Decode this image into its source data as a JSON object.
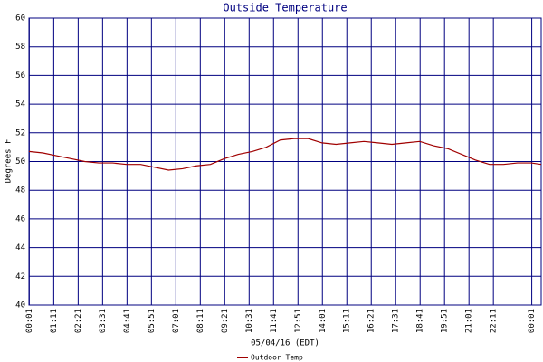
{
  "chart_data": {
    "type": "line",
    "title": "Outside Temperature",
    "ylabel": "Degrees F",
    "xlabel": "05/04/16 (EDT)",
    "x": [
      0,
      40,
      80,
      120,
      160,
      200,
      240,
      280,
      320,
      360,
      400,
      440,
      480,
      520,
      560,
      600,
      640,
      680,
      720,
      760,
      800,
      840,
      880,
      920,
      960,
      1000,
      1040,
      1080,
      1120,
      1160,
      1200,
      1240,
      1280,
      1320,
      1360,
      1400,
      1440,
      1468
    ],
    "series": [
      {
        "name": "Outdoor Temp",
        "color": "#a00000",
        "values": [
          50.7,
          50.6,
          50.4,
          50.2,
          50.0,
          49.9,
          49.9,
          49.8,
          49.8,
          49.6,
          49.4,
          49.5,
          49.7,
          49.8,
          50.2,
          50.5,
          50.7,
          51.0,
          51.5,
          51.6,
          51.6,
          51.3,
          51.2,
          51.3,
          51.4,
          51.3,
          51.2,
          51.3,
          51.4,
          51.1,
          50.9,
          50.5,
          50.1,
          49.8,
          49.8,
          49.9,
          49.9,
          49.8
        ]
      }
    ],
    "xlim": [
      0,
      1468
    ],
    "xticks": [
      {
        "value": 1,
        "label": "00:01"
      },
      {
        "value": 71,
        "label": "01:11"
      },
      {
        "value": 141,
        "label": "02:21"
      },
      {
        "value": 211,
        "label": "03:31"
      },
      {
        "value": 281,
        "label": "04:41"
      },
      {
        "value": 351,
        "label": "05:51"
      },
      {
        "value": 421,
        "label": "07:01"
      },
      {
        "value": 491,
        "label": "08:11"
      },
      {
        "value": 561,
        "label": "09:21"
      },
      {
        "value": 631,
        "label": "10:31"
      },
      {
        "value": 701,
        "label": "11:41"
      },
      {
        "value": 771,
        "label": "12:51"
      },
      {
        "value": 841,
        "label": "14:01"
      },
      {
        "value": 911,
        "label": "15:11"
      },
      {
        "value": 981,
        "label": "16:21"
      },
      {
        "value": 1051,
        "label": "17:31"
      },
      {
        "value": 1121,
        "label": "18:41"
      },
      {
        "value": 1191,
        "label": "19:51"
      },
      {
        "value": 1261,
        "label": "21:01"
      },
      {
        "value": 1331,
        "label": "22:11"
      },
      {
        "value": 1441,
        "label": "00:01"
      }
    ],
    "ylim": [
      40,
      60
    ],
    "yticks": [
      40,
      42,
      44,
      46,
      48,
      50,
      52,
      54,
      56,
      58,
      60
    ],
    "grid": true,
    "grid_color": "#000080"
  }
}
